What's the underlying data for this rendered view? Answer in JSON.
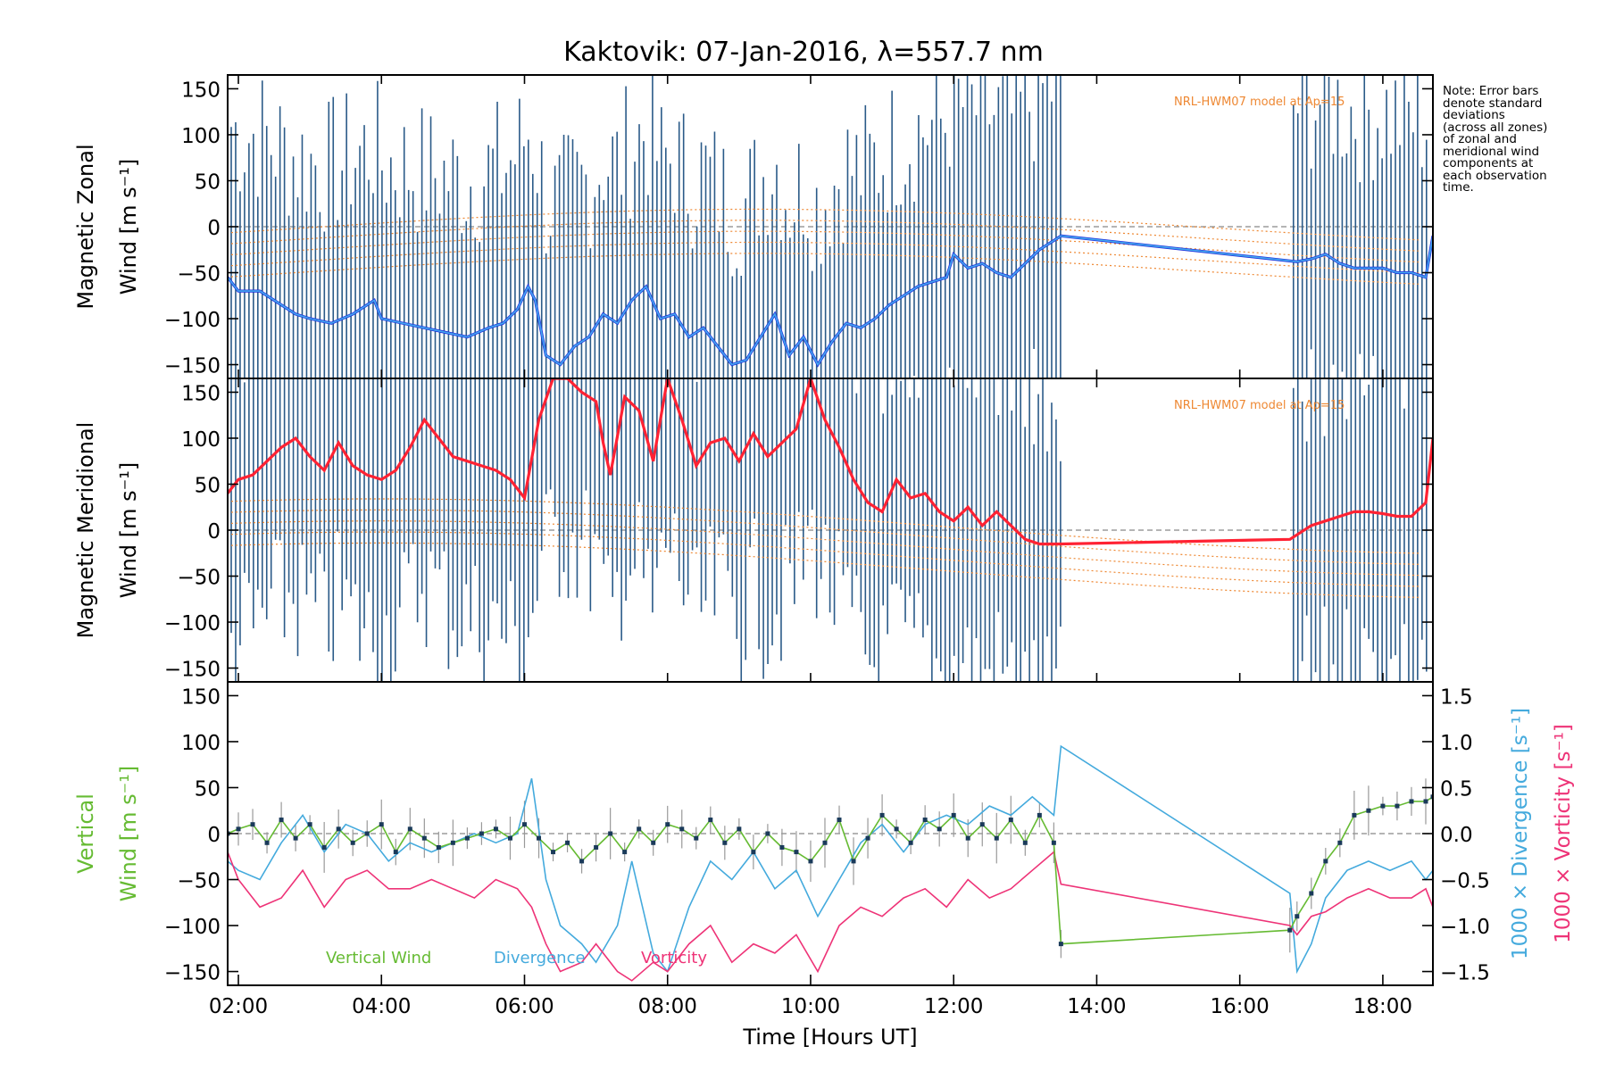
{
  "title": "Kaktovik: 07-Jan-2016, λ=557.7 nm",
  "note_lines": [
    "Note: Error bars",
    "denote standard",
    "deviations",
    "(across all zones)",
    "of zonal and",
    "meridional wind",
    "components at",
    "each observation",
    "time."
  ],
  "colors": {
    "zonal": "#2233dd",
    "zonal_light": "#44aaee",
    "meridional": "#ff2233",
    "vertical": "#66bb33",
    "divergence": "#44aadd",
    "vorticity": "#ee3377",
    "model": "#ee8833",
    "errorbar": "#2a5a88",
    "zero_line": "#888888"
  },
  "chart_data": [
    {
      "type": "line",
      "panel": "zonal",
      "ylabel_line1": "Magnetic Zonal",
      "ylabel_line2": "Wind [m s⁻¹]",
      "model_label": "NRL-HWM07 model at Ap=15",
      "xlim": [
        1.85,
        18.7
      ],
      "ylim": [
        -165,
        165
      ],
      "yticks": [
        -150,
        -100,
        -50,
        0,
        50,
        100,
        150
      ],
      "series": [
        {
          "x": [
            1.85,
            2.0,
            2.3,
            2.6,
            2.8,
            3.0,
            3.3,
            3.6,
            3.9,
            4.0,
            4.3,
            4.6,
            4.9,
            5.2,
            5.5,
            5.7,
            5.9,
            6.05,
            6.15,
            6.3,
            6.5,
            6.7,
            6.9,
            7.1,
            7.3,
            7.5,
            7.7,
            7.9,
            8.1,
            8.3,
            8.5,
            8.7,
            8.9,
            9.1,
            9.3,
            9.5,
            9.7,
            9.9,
            10.1,
            10.3,
            10.5,
            10.7,
            10.9,
            11.1,
            11.3,
            11.5,
            11.7,
            11.9,
            12.0,
            12.2,
            12.4,
            12.6,
            12.8,
            13.0,
            13.2,
            13.4,
            13.5,
            16.8,
            17.0,
            17.2,
            17.4,
            17.6,
            17.8,
            18.0,
            18.2,
            18.4,
            18.6,
            18.7
          ],
          "y": [
            -55,
            -70,
            -70,
            -85,
            -95,
            -100,
            -105,
            -95,
            -80,
            -100,
            -105,
            -110,
            -115,
            -120,
            -110,
            -105,
            -90,
            -65,
            -80,
            -140,
            -150,
            -130,
            -120,
            -95,
            -105,
            -80,
            -65,
            -100,
            -95,
            -120,
            -110,
            -130,
            -150,
            -145,
            -120,
            -95,
            -140,
            -120,
            -150,
            -125,
            -105,
            -110,
            -100,
            -85,
            -75,
            -65,
            -60,
            -55,
            -30,
            -45,
            -40,
            -50,
            -55,
            -40,
            -25,
            -15,
            -10,
            -38,
            -35,
            -30,
            -40,
            -45,
            -45,
            -45,
            -50,
            -50,
            -55,
            -10
          ]
        }
      ]
    },
    {
      "type": "line",
      "panel": "meridional",
      "ylabel_line1": "Magnetic Meridional",
      "ylabel_line2": "Wind [m s⁻¹]",
      "model_label": "NRL-HWM07 model at Ap=15",
      "xlim": [
        1.85,
        18.7
      ],
      "ylim": [
        -165,
        165
      ],
      "yticks": [
        -150,
        -100,
        -50,
        0,
        50,
        100,
        150
      ],
      "series": [
        {
          "x": [
            1.85,
            2.0,
            2.2,
            2.4,
            2.6,
            2.8,
            3.0,
            3.2,
            3.4,
            3.6,
            3.8,
            4.0,
            4.2,
            4.4,
            4.6,
            4.8,
            5.0,
            5.2,
            5.4,
            5.6,
            5.8,
            6.0,
            6.2,
            6.4,
            6.6,
            6.8,
            7.0,
            7.1,
            7.2,
            7.4,
            7.6,
            7.8,
            8.0,
            8.2,
            8.4,
            8.6,
            8.8,
            9.0,
            9.2,
            9.4,
            9.6,
            9.8,
            10.0,
            10.2,
            10.4,
            10.6,
            10.8,
            11.0,
            11.2,
            11.4,
            11.6,
            11.8,
            12.0,
            12.2,
            12.4,
            12.6,
            12.8,
            13.0,
            13.2,
            13.4,
            13.5,
            16.7,
            17.0,
            17.2,
            17.4,
            17.6,
            17.8,
            18.0,
            18.2,
            18.4,
            18.6,
            18.7
          ],
          "y": [
            40,
            55,
            60,
            75,
            90,
            100,
            80,
            65,
            95,
            70,
            60,
            55,
            65,
            90,
            120,
            100,
            80,
            75,
            70,
            65,
            55,
            35,
            120,
            165,
            165,
            150,
            140,
            95,
            60,
            145,
            130,
            75,
            165,
            120,
            70,
            95,
            100,
            75,
            105,
            80,
            95,
            110,
            165,
            120,
            90,
            55,
            30,
            20,
            55,
            35,
            40,
            20,
            10,
            25,
            5,
            20,
            5,
            -10,
            -15,
            -15,
            -15,
            -10,
            5,
            10,
            15,
            20,
            20,
            18,
            15,
            15,
            30,
            100
          ]
        }
      ]
    },
    {
      "type": "line",
      "panel": "vertical",
      "ylabel_line1": "Vertical",
      "ylabel_line2": "Wind [m s⁻¹]",
      "right_label_div": "1000 × Divergence [s⁻¹]",
      "right_label_vor": "1000 × Vorticity [s⁻¹]",
      "xlabel": "Time [Hours UT]",
      "xlim": [
        1.85,
        18.7
      ],
      "ylim": [
        -165,
        165
      ],
      "y2lim": [
        -1.65,
        1.65
      ],
      "yticks": [
        -150,
        -100,
        -50,
        0,
        50,
        100,
        150
      ],
      "y2ticks": [
        1.5,
        1.0,
        0.5,
        0.0,
        -0.5,
        -1.0,
        -1.5
      ],
      "xticks": [
        "02:00",
        "04:00",
        "06:00",
        "08:00",
        "10:00",
        "12:00",
        "14:00",
        "16:00",
        "18:00"
      ],
      "xtick_values": [
        2,
        4,
        6,
        8,
        10,
        12,
        14,
        16,
        18
      ],
      "legend": [
        "Vertical Wind",
        "Divergence",
        "Vorticity"
      ],
      "series": [
        {
          "name": "Vertical Wind",
          "x": [
            1.85,
            2.0,
            2.2,
            2.4,
            2.6,
            2.8,
            3.0,
            3.2,
            3.4,
            3.6,
            3.8,
            4.0,
            4.2,
            4.4,
            4.6,
            4.8,
            5.0,
            5.2,
            5.4,
            5.6,
            5.8,
            6.0,
            6.2,
            6.4,
            6.6,
            6.8,
            7.0,
            7.2,
            7.4,
            7.6,
            7.8,
            8.0,
            8.2,
            8.4,
            8.6,
            8.8,
            9.0,
            9.2,
            9.4,
            9.6,
            9.8,
            10.0,
            10.2,
            10.4,
            10.6,
            10.8,
            11.0,
            11.2,
            11.4,
            11.6,
            11.8,
            12.0,
            12.2,
            12.4,
            12.6,
            12.8,
            13.0,
            13.2,
            13.4,
            13.5,
            16.7,
            16.8,
            17.0,
            17.2,
            17.4,
            17.6,
            17.8,
            18.0,
            18.2,
            18.4,
            18.6,
            18.7
          ],
          "y": [
            0,
            5,
            10,
            -10,
            15,
            -5,
            10,
            -15,
            5,
            -10,
            0,
            10,
            -20,
            5,
            -5,
            -15,
            -10,
            -5,
            0,
            5,
            -5,
            10,
            -5,
            -20,
            -10,
            -30,
            -15,
            0,
            -20,
            5,
            -10,
            10,
            5,
            -5,
            15,
            -10,
            5,
            -20,
            0,
            -15,
            -20,
            -30,
            -10,
            15,
            -30,
            -5,
            20,
            5,
            -10,
            15,
            5,
            20,
            -5,
            10,
            -5,
            15,
            -10,
            20,
            -10,
            -120,
            -105,
            -90,
            -65,
            -30,
            -10,
            20,
            25,
            30,
            30,
            35,
            35,
            40
          ]
        },
        {
          "name": "Divergence",
          "x": [
            1.85,
            2.0,
            2.3,
            2.6,
            2.9,
            3.2,
            3.5,
            3.8,
            4.1,
            4.4,
            4.7,
            5.0,
            5.3,
            5.6,
            5.9,
            6.1,
            6.3,
            6.5,
            6.8,
            7.0,
            7.3,
            7.5,
            7.8,
            8.0,
            8.3,
            8.6,
            8.9,
            9.2,
            9.5,
            9.8,
            10.1,
            10.4,
            10.7,
            11.0,
            11.3,
            11.6,
            11.9,
            12.2,
            12.5,
            12.8,
            13.1,
            13.4,
            13.5,
            16.7,
            16.8,
            17.0,
            17.2,
            17.5,
            17.8,
            18.1,
            18.4,
            18.6,
            18.7
          ],
          "y": [
            -0.3,
            -0.4,
            -0.5,
            -0.1,
            0.2,
            -0.2,
            0.1,
            0.0,
            -0.3,
            -0.1,
            -0.2,
            -0.1,
            0.0,
            -0.1,
            0.0,
            0.6,
            -0.5,
            -1.0,
            -1.2,
            -1.4,
            -1.0,
            -0.3,
            -1.3,
            -1.5,
            -0.8,
            -0.3,
            -0.5,
            -0.2,
            -0.6,
            -0.4,
            -0.9,
            -0.5,
            -0.1,
            0.1,
            -0.2,
            0.1,
            0.2,
            0.1,
            0.3,
            0.2,
            0.4,
            0.2,
            0.95,
            -0.65,
            -1.5,
            -1.2,
            -0.7,
            -0.4,
            -0.3,
            -0.4,
            -0.3,
            -0.5,
            -0.4
          ]
        },
        {
          "name": "Vorticity",
          "x": [
            1.85,
            2.0,
            2.3,
            2.6,
            2.9,
            3.2,
            3.5,
            3.8,
            4.1,
            4.4,
            4.7,
            5.0,
            5.3,
            5.6,
            5.9,
            6.1,
            6.3,
            6.5,
            6.8,
            7.0,
            7.3,
            7.5,
            7.8,
            8.0,
            8.3,
            8.6,
            8.9,
            9.2,
            9.5,
            9.8,
            10.1,
            10.4,
            10.7,
            11.0,
            11.3,
            11.6,
            11.9,
            12.2,
            12.5,
            12.8,
            13.1,
            13.4,
            13.5,
            16.7,
            16.8,
            17.0,
            17.2,
            17.5,
            17.8,
            18.1,
            18.4,
            18.6,
            18.7
          ],
          "y": [
            -0.2,
            -0.5,
            -0.8,
            -0.7,
            -0.4,
            -0.8,
            -0.5,
            -0.4,
            -0.6,
            -0.6,
            -0.5,
            -0.6,
            -0.7,
            -0.5,
            -0.6,
            -0.8,
            -1.2,
            -1.5,
            -1.4,
            -1.2,
            -1.5,
            -1.6,
            -1.4,
            -1.5,
            -1.2,
            -1.0,
            -1.4,
            -1.2,
            -1.3,
            -1.1,
            -1.5,
            -1.0,
            -0.8,
            -0.9,
            -0.7,
            -0.6,
            -0.8,
            -0.5,
            -0.7,
            -0.6,
            -0.4,
            -0.2,
            -0.55,
            -1.0,
            -1.1,
            -0.9,
            -0.85,
            -0.7,
            -0.6,
            -0.7,
            -0.7,
            -0.6,
            -0.8
          ]
        }
      ]
    }
  ]
}
